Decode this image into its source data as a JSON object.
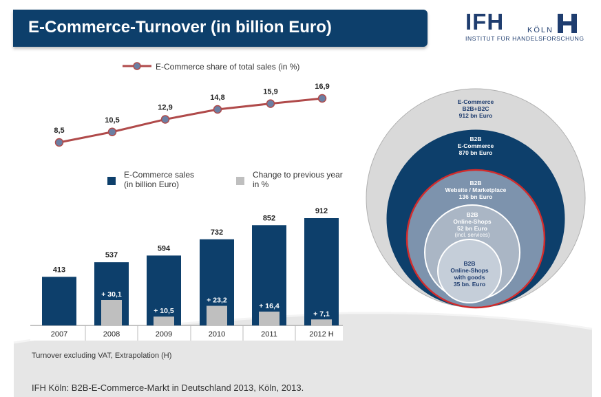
{
  "header": {
    "title": "E-Commerce-Turnover (in billion Euro)"
  },
  "logo": {
    "name": "IFH",
    "city": "KÖLN",
    "subtitle": "INSTITUT FÜR HANDELSFORSCHUNG"
  },
  "colors": {
    "navy": "#0d3f6b",
    "gray": "#bfbfbf",
    "line": "#b04a4a",
    "marker": "#6b7fa3",
    "highlight": "#d22b2b"
  },
  "legend": {
    "line_label": "E-Commerce share of total sales (in %)",
    "sales_line1": "E-Commerce sales",
    "sales_line2": "(in billion Euro)",
    "change_line1": "Change to previous year",
    "change_line2": "in %"
  },
  "chart_data": [
    {
      "type": "line",
      "series": [
        {
          "name": "E-Commerce share of total sales (in %)",
          "values": [
            8.5,
            10.5,
            12.9,
            14.8,
            15.9,
            16.9
          ],
          "labels": [
            "8,5",
            "10,5",
            "12,9",
            "14,8",
            "15,9",
            "16,9"
          ]
        }
      ],
      "categories": [
        "2007",
        "2008",
        "2009",
        "2010",
        "2011",
        "2012 H"
      ]
    },
    {
      "type": "bar",
      "categories": [
        "2007",
        "2008",
        "2009",
        "2010",
        "2011",
        "2012 H"
      ],
      "series": [
        {
          "name": "E-Commerce sales (in billion Euro)",
          "values": [
            413,
            537,
            594,
            732,
            852,
            912
          ],
          "labels": [
            "413",
            "537",
            "594",
            "732",
            "852",
            "912"
          ]
        },
        {
          "name": "Change to previous year in %",
          "values": [
            null,
            30.1,
            10.5,
            23.2,
            16.4,
            7.1
          ],
          "labels": [
            "",
            "+ 30,1",
            "+ 10,5",
            "+ 23,2",
            "+ 16,4",
            "+ 7,1"
          ]
        }
      ]
    },
    {
      "type": "nested-circles",
      "circles": [
        {
          "lines": [
            "E-Commerce",
            "B2B+B2C",
            "912 bn Euro"
          ]
        },
        {
          "lines": [
            "B2B",
            "E-Commerce",
            "870 bn Euro"
          ]
        },
        {
          "lines": [
            "B2B",
            "Website / Marketplace",
            "136 bn Euro"
          ]
        },
        {
          "lines": [
            "B2B",
            "Online-Shops",
            "52 bn Euro",
            "(incl. services)"
          ]
        },
        {
          "lines": [
            "B2B",
            "Online-Shops",
            "with goods",
            "35 bn. Euro"
          ]
        }
      ]
    }
  ],
  "footnote": "Turnover excluding VAT, Extrapolation (H)",
  "source": "IFH Köln: B2B-E-Commerce-Markt in Deutschland 2013, Köln, 2013."
}
